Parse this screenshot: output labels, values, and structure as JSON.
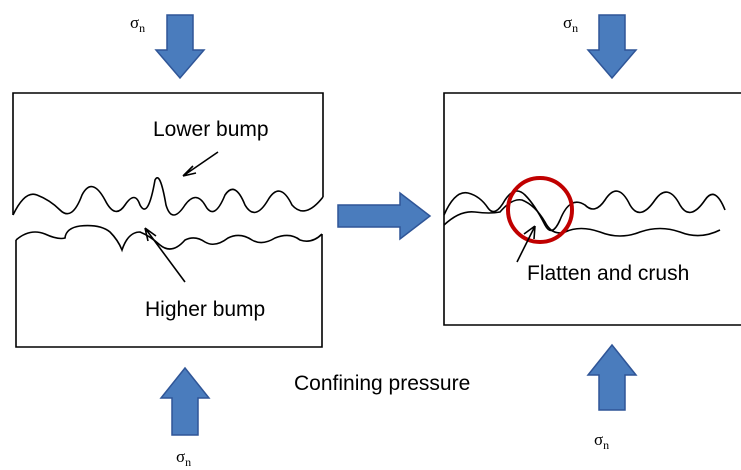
{
  "labels": {
    "lower_bump": "Lower bump",
    "higher_bump": "Higher bump",
    "confining_pressure": "Confining pressure",
    "flatten_and_crush": "Flatten and crush"
  },
  "stress": [
    {
      "symbol": "σ",
      "subscript": "n"
    },
    {
      "symbol": "σ",
      "subscript": "n"
    },
    {
      "symbol": "σ",
      "subscript": "n"
    },
    {
      "symbol": "σ",
      "subscript": "n"
    }
  ]
}
